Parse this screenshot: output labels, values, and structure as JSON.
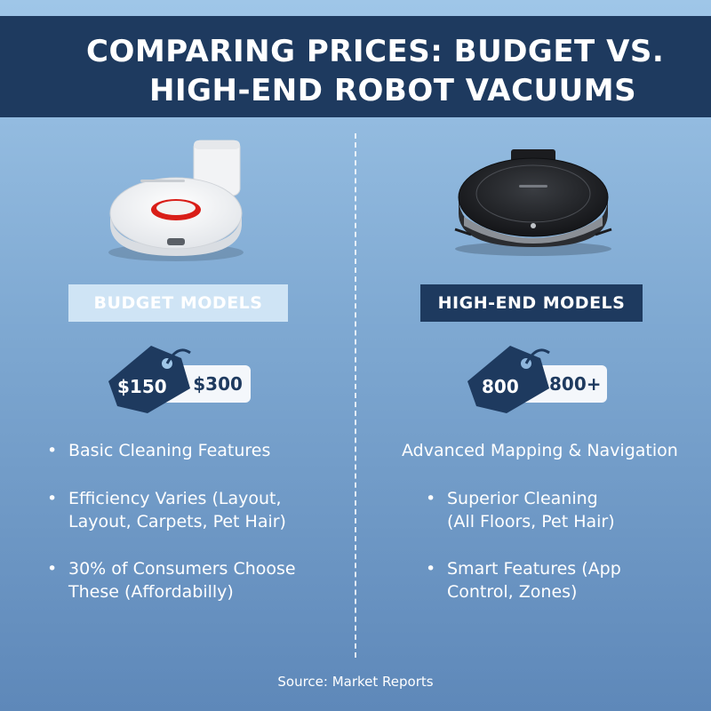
{
  "title": {
    "line1": "COMPARING PRICES: BUDGET VS.",
    "line2": "HIGH-END ROBOT VACUUMS"
  },
  "budget": {
    "label": "BUDGET MODELS",
    "tag_price": "$150",
    "box_price": "- $300",
    "features": [
      {
        "line1": "Basic Cleaning Features",
        "line2": ""
      },
      {
        "line1": "Efficiency Varies (Layout,",
        "line2": "Layout, Carpets, Pet Hair)"
      },
      {
        "line1": "30% of Consumers Choose",
        "line2": "These (Affordabilly)"
      }
    ],
    "vacuum_icon": "white-robot-vacuum-icon",
    "tag_icon": "price-tag-icon"
  },
  "high_end": {
    "label": "HIGH-END MODELS",
    "tag_price": "800",
    "box_price": "800+",
    "features": [
      {
        "line1": "Advanced Mapping & Navigation",
        "line2": ""
      },
      {
        "line1": "Superior Cleaning",
        "line2": "(All Floors, Pet Hair)"
      },
      {
        "line1": "Smart Features (App",
        "line2": "Control, Zones)"
      }
    ],
    "vacuum_icon": "black-robot-vacuum-icon",
    "tag_icon": "price-tag-icon"
  },
  "source": "Source: Market Reports",
  "colors": {
    "navy": "#1e3a5f",
    "light_blue_label": "#cfe4f5",
    "background_top": "#9fc6e8",
    "background_bottom": "#5e88b9"
  }
}
